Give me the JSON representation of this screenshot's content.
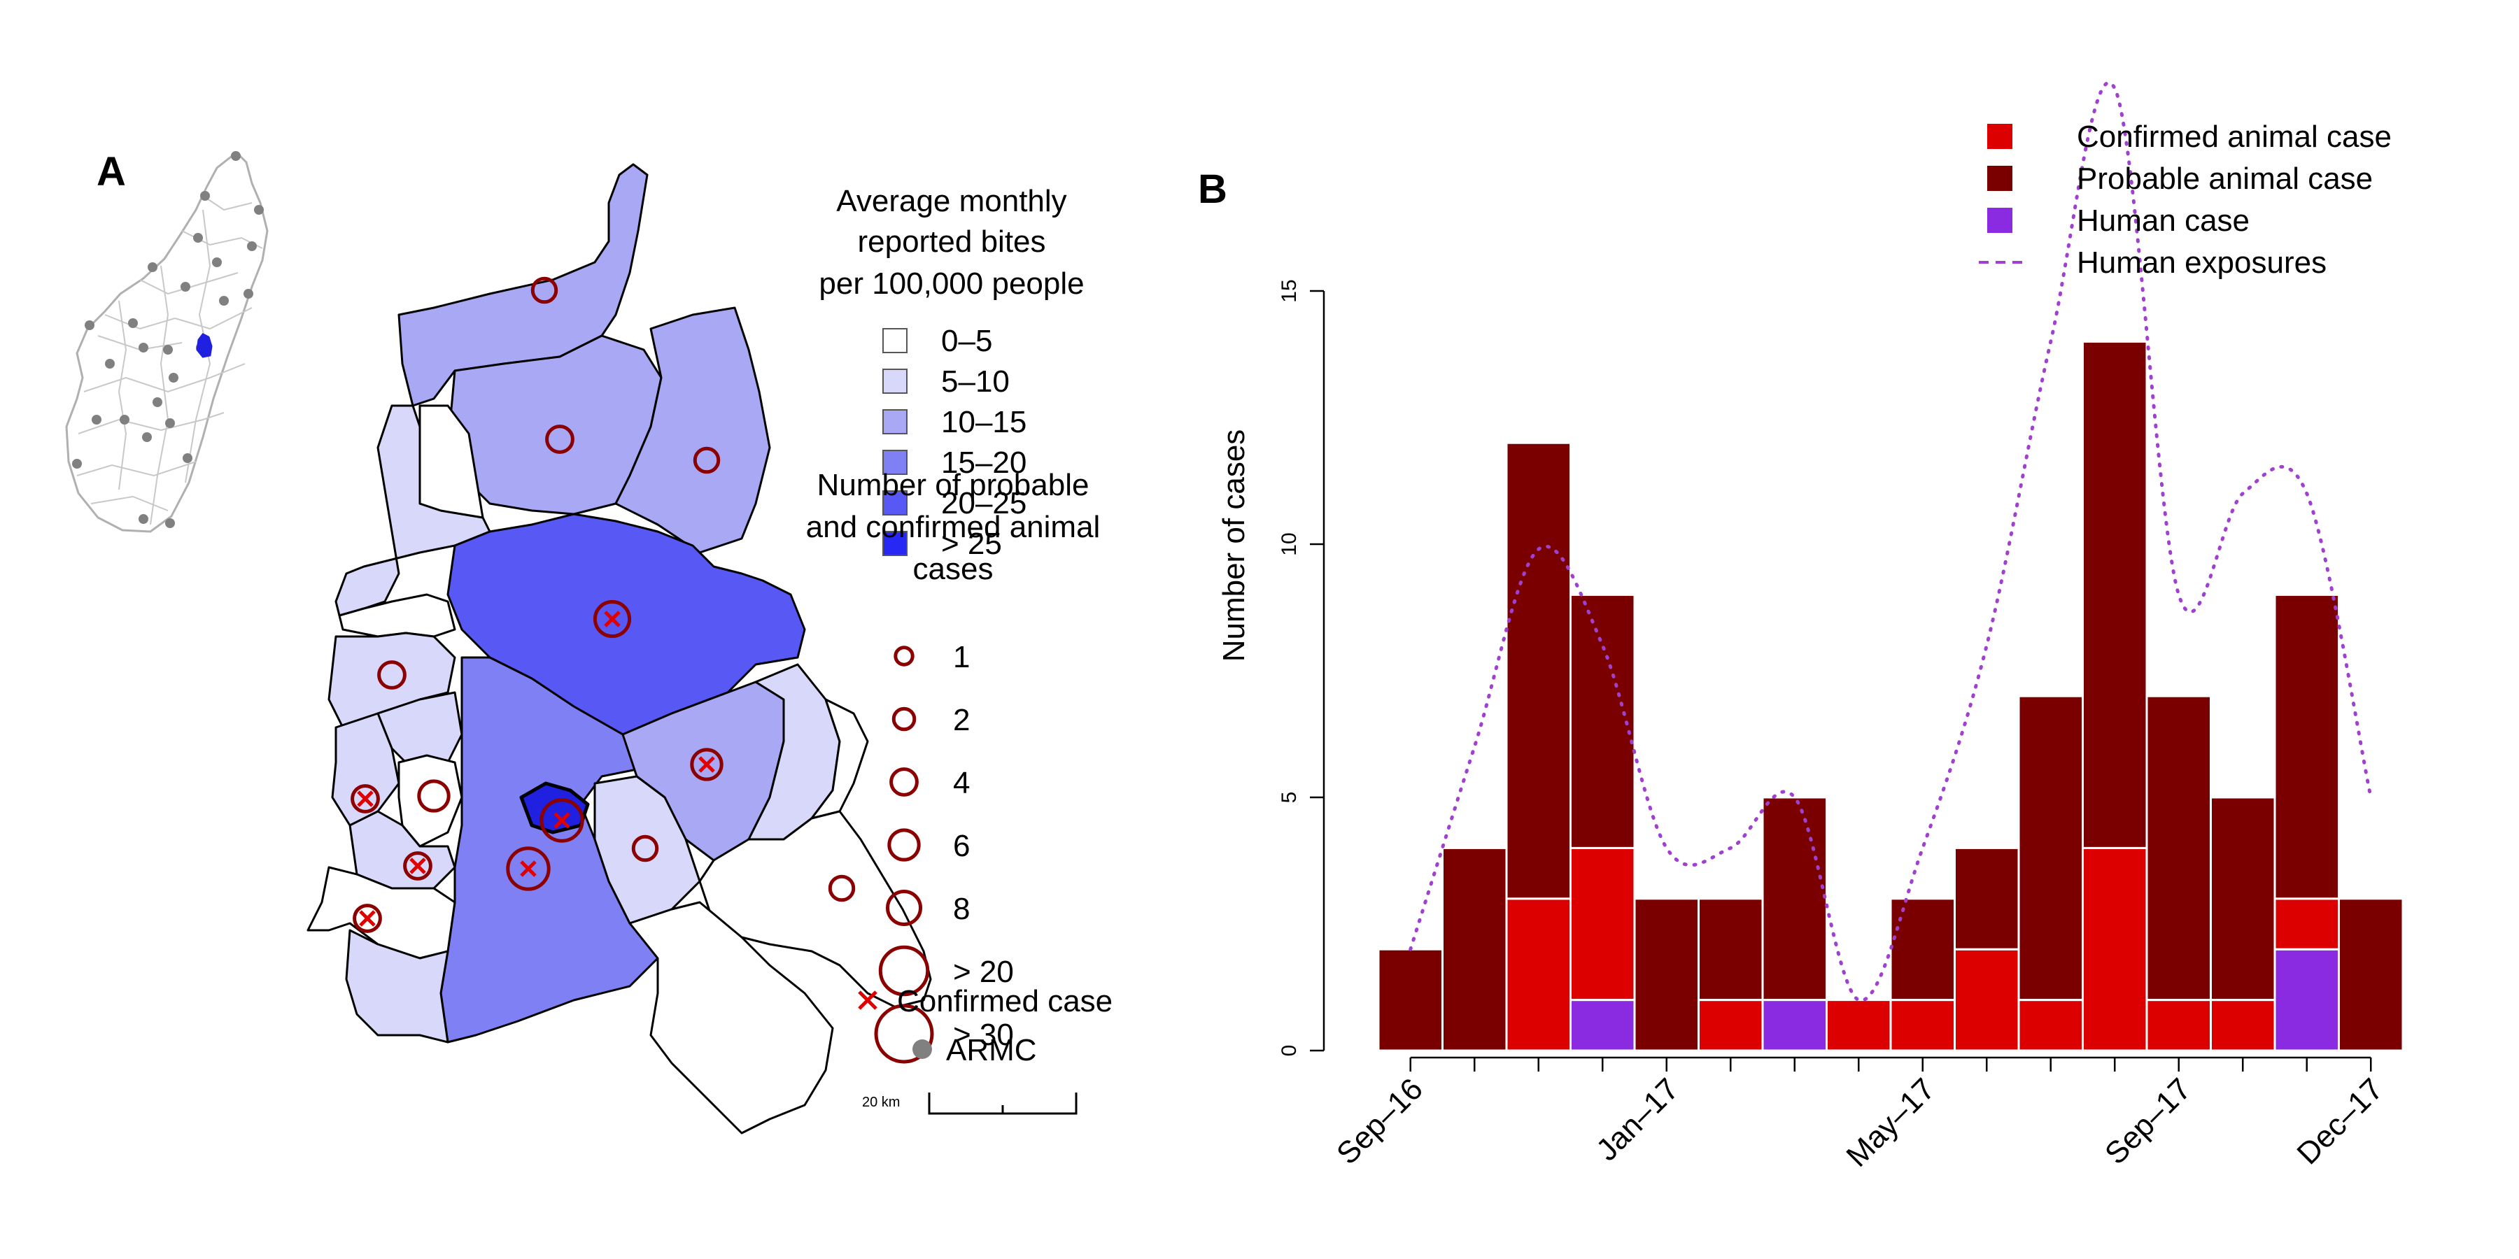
{
  "panel_a": {
    "letter": "A",
    "bites_legend": {
      "title_lines": [
        "Average monthly",
        "reported bites",
        "per 100,000 people"
      ],
      "items": [
        {
          "label": "0–5",
          "color": "#ffffff"
        },
        {
          "label": "5–10",
          "color": "#d8d8fa"
        },
        {
          "label": "10–15",
          "color": "#a8a8f5"
        },
        {
          "label": "15–20",
          "color": "#8080f5"
        },
        {
          "label": "20–25",
          "color": "#5858f5"
        },
        {
          "label": "> 25",
          "color": "#2828f5"
        }
      ]
    },
    "cases_legend": {
      "title_lines": [
        "Number of probable",
        "and confirmed animal",
        "cases"
      ],
      "items": [
        {
          "label": "1",
          "value": 1
        },
        {
          "label": "2",
          "value": 2
        },
        {
          "label": "4",
          "value": 4
        },
        {
          "label": "6",
          "value": 6
        },
        {
          "label": "8",
          "value": 8
        },
        {
          "label": "> 20",
          "value": 20
        },
        {
          "label": "> 30",
          "value": 30
        }
      ],
      "confirmed_label": "Confirmed case",
      "armc_label": "ARMC"
    },
    "scale_bar_label": "20 km",
    "colors": {
      "circle": "#8b0000",
      "cross": "#e00000",
      "armc": "#808080",
      "inset_highlight": "#2020e0"
    }
  },
  "chart_data": {
    "type": "bar",
    "panel_letter": "B",
    "ylabel": "Number of cases",
    "xlabel": "",
    "ylim": [
      0,
      15
    ],
    "yticks": [
      0,
      5,
      10,
      15
    ],
    "categories": [
      "Sep-16",
      "Oct-16",
      "Nov-16",
      "Dec-16",
      "Jan-17",
      "Feb-17",
      "Mar-17",
      "Apr-17",
      "May-17",
      "Jun-17",
      "Jul-17",
      "Aug-17",
      "Sep-17",
      "Oct-17",
      "Nov-17",
      "Dec-17"
    ],
    "x_tick_labels": [
      {
        "label": "Sep–16",
        "index": 0
      },
      {
        "label": "Jan–17",
        "index": 4
      },
      {
        "label": "May–17",
        "index": 8
      },
      {
        "label": "Sep–17",
        "index": 12
      },
      {
        "label": "Dec–17",
        "index": 15
      }
    ],
    "series": [
      {
        "name": "Human case",
        "color": "#8a2be2",
        "values": [
          0,
          0,
          0,
          1,
          0,
          0,
          1,
          0,
          0,
          0,
          0,
          0,
          0,
          0,
          2,
          0
        ]
      },
      {
        "name": "Confirmed animal case",
        "color": "#dd0000",
        "values": [
          0,
          0,
          3,
          3,
          0,
          1,
          0,
          1,
          1,
          2,
          1,
          4,
          1,
          1,
          1,
          0
        ]
      },
      {
        "name": "Probable animal case",
        "color": "#7a0000",
        "values": [
          2,
          4,
          9,
          5,
          3,
          2,
          4,
          0,
          2,
          2,
          6,
          10,
          6,
          4,
          6,
          3
        ]
      }
    ],
    "line_series": {
      "name": "Human exposures",
      "color": "#a040d0",
      "values": [
        2,
        6,
        9.9,
        8,
        4,
        4,
        5,
        1,
        4,
        8,
        14,
        19,
        9,
        11,
        11,
        5
      ]
    },
    "legend": {
      "placement": "top-right",
      "items": [
        {
          "label": "Confirmed animal case",
          "color": "#dd0000",
          "kind": "square"
        },
        {
          "label": "Probable animal case",
          "color": "#7a0000",
          "kind": "square"
        },
        {
          "label": "Human case",
          "color": "#8a2be2",
          "kind": "square"
        },
        {
          "label": "Human exposures",
          "color": "#a040d0",
          "kind": "dash"
        }
      ]
    }
  }
}
